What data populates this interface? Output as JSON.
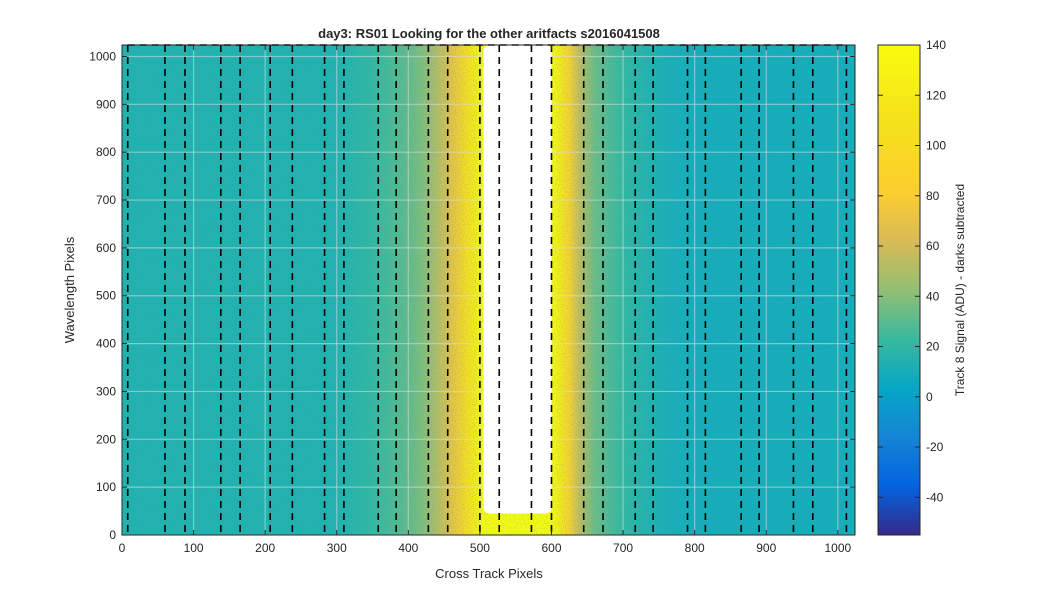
{
  "chart_data": {
    "type": "heatmap",
    "title": "day3: RS01  Looking for the other aritfacts  s2016041508",
    "xlabel": "Cross Track Pixels",
    "ylabel": "Wavelength Pixels",
    "xlim": [
      0,
      1024
    ],
    "ylim": [
      0,
      1024
    ],
    "x_ticks": [
      0,
      100,
      200,
      300,
      400,
      500,
      600,
      700,
      800,
      900,
      1000
    ],
    "y_ticks": [
      0,
      100,
      200,
      300,
      400,
      500,
      600,
      700,
      800,
      900,
      1000
    ],
    "grid": true,
    "colormap": "parula",
    "background_level": 10,
    "saturated_region": {
      "x_range": [
        505,
        600
      ],
      "y_range": [
        45,
        1024
      ],
      "color": "#ffffff"
    },
    "signal_profile": {
      "x": [
        300,
        350,
        400,
        420,
        440,
        460,
        480,
        495,
        505,
        600,
        612,
        625,
        640,
        660,
        700,
        800
      ],
      "value": [
        15,
        22,
        32,
        40,
        52,
        70,
        100,
        125,
        140,
        140,
        120,
        85,
        55,
        35,
        22,
        12
      ]
    },
    "track_boundaries_x": [
      8,
      60,
      88,
      138,
      165,
      207,
      238,
      283,
      310,
      358,
      383,
      428,
      455,
      500,
      527,
      572,
      600,
      645,
      672,
      717,
      742,
      790,
      815,
      865,
      890,
      938,
      965,
      1012
    ],
    "colorbar": {
      "label": "Track 8 Signal (ADU) - darks subtracted",
      "range": [
        -55,
        140
      ],
      "ticks": [
        -40,
        -20,
        0,
        20,
        40,
        60,
        80,
        100,
        120,
        140
      ]
    }
  }
}
